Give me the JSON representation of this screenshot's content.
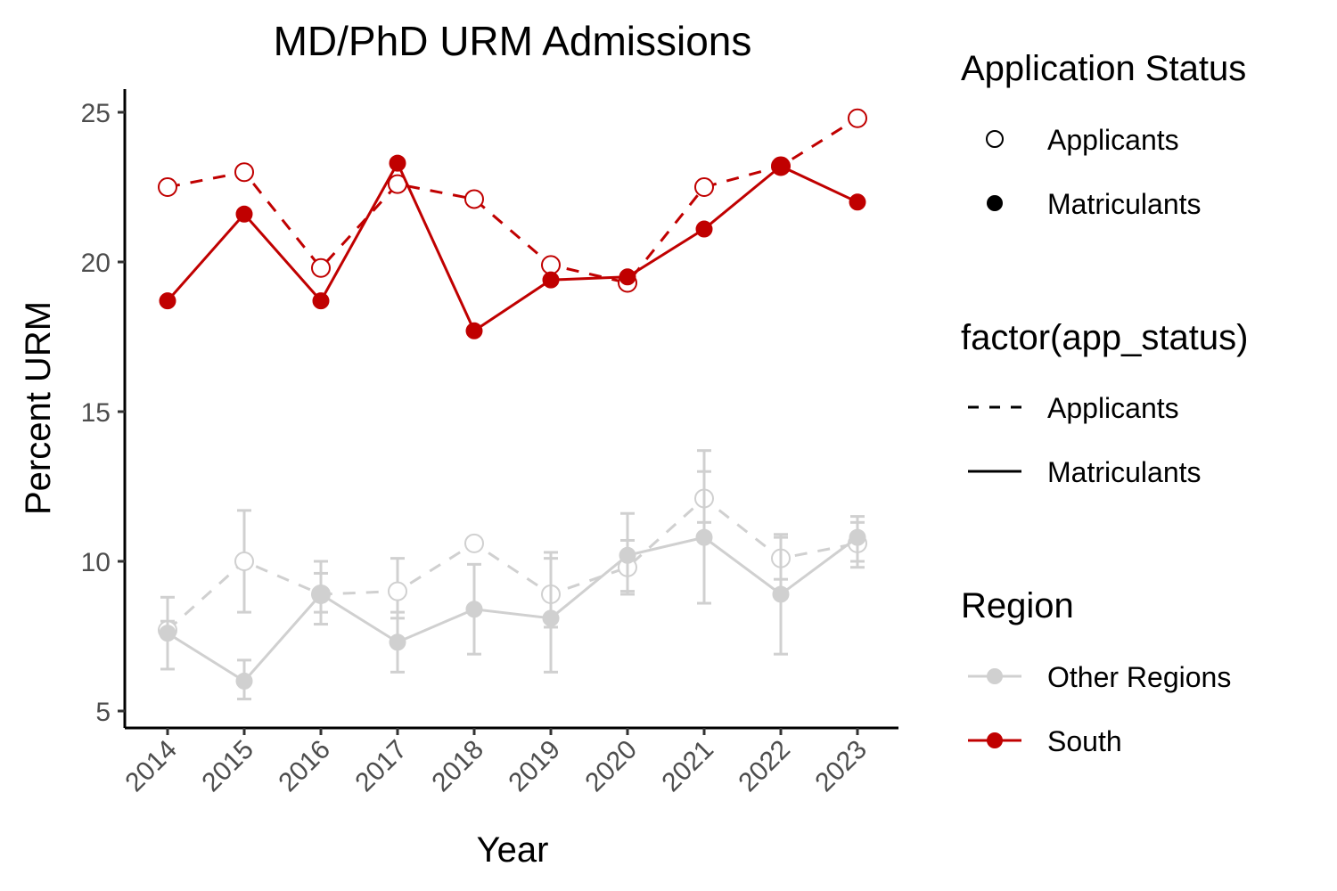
{
  "colors": {
    "south": "#c00000",
    "other": "#d0d0d0",
    "axis": "#000000",
    "tick_text": "#4d4d4d"
  },
  "chart_data": {
    "type": "line",
    "title": "MD/PhD URM Admissions",
    "xlabel": "Year",
    "ylabel": "Percent URM",
    "x": [
      "2014",
      "2015",
      "2016",
      "2017",
      "2018",
      "2019",
      "2020",
      "2021",
      "2022",
      "2023"
    ],
    "ylim": [
      4.5,
      25.8
    ],
    "yticks": [
      5,
      10,
      15,
      20,
      25
    ],
    "series": [
      {
        "region": "South",
        "status": "Applicants",
        "values": [
          22.5,
          23.0,
          19.8,
          22.6,
          22.1,
          19.9,
          19.3,
          22.5,
          23.2,
          24.8
        ]
      },
      {
        "region": "South",
        "status": "Matriculants",
        "values": [
          18.7,
          21.6,
          18.7,
          23.3,
          17.7,
          19.4,
          19.5,
          21.1,
          23.2,
          22.0
        ]
      },
      {
        "region": "Other Regions",
        "status": "Applicants",
        "values": [
          7.7,
          10.0,
          8.9,
          9.0,
          10.6,
          8.9,
          9.8,
          12.1,
          10.1,
          10.6
        ],
        "error_low": [
          7.5,
          8.3,
          8.3,
          8.1,
          10.5,
          7.8,
          9.0,
          11.3,
          9.4,
          10.0
        ],
        "error_high": [
          8.0,
          11.7,
          9.6,
          10.1,
          10.7,
          10.1,
          10.7,
          13.0,
          10.8,
          11.3
        ]
      },
      {
        "region": "Other Regions",
        "status": "Matriculants",
        "values": [
          7.6,
          6.0,
          8.9,
          7.3,
          8.4,
          8.1,
          10.2,
          10.8,
          8.9,
          10.8
        ],
        "error_low": [
          6.4,
          5.4,
          7.9,
          6.3,
          6.9,
          6.3,
          8.9,
          8.6,
          6.9,
          9.8
        ],
        "error_high": [
          8.8,
          6.7,
          10.0,
          8.3,
          9.9,
          10.3,
          11.6,
          13.7,
          10.9,
          11.5
        ]
      }
    ]
  },
  "legend": {
    "shape_title": "Application Status",
    "shape_items": [
      "Applicants",
      "Matriculants"
    ],
    "linetype_title": "factor(app_status)",
    "linetype_items": [
      "Applicants",
      "Matriculants"
    ],
    "region_title": "Region",
    "region_items": [
      "Other Regions",
      "South"
    ]
  }
}
